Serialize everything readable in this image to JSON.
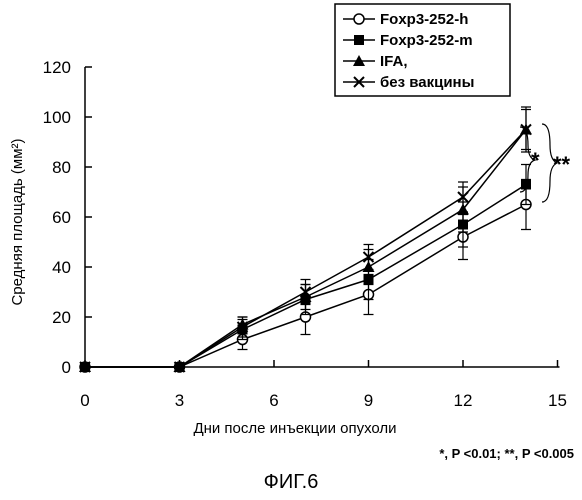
{
  "chart_data": {
    "type": "line",
    "title": "",
    "xlabel": "Дни после инъекции опухоли",
    "ylabel": "Средняя площадь (мм²)",
    "xlim": [
      0,
      15
    ],
    "ylim": [
      0,
      120
    ],
    "xticks": [
      0,
      3,
      6,
      9,
      12,
      15
    ],
    "yticks": [
      0,
      20,
      40,
      60,
      80,
      100,
      120
    ],
    "grid": false,
    "legend_position": "top-right",
    "series": [
      {
        "name": "Foxp3-252-h",
        "legend_label": "-○-:Foxp3-252-h",
        "marker": "open-circle",
        "x": [
          0,
          3,
          5,
          7,
          9,
          12,
          14
        ],
        "y": [
          0,
          0,
          11,
          20,
          29,
          52,
          65
        ],
        "err": [
          0,
          0,
          4,
          7,
          8,
          9,
          10
        ]
      },
      {
        "name": "Foxp3-252-m",
        "legend_label": "-■-:Foxp3-252-m",
        "marker": "filled-square",
        "x": [
          0,
          3,
          5,
          7,
          9,
          12,
          14
        ],
        "y": [
          0,
          0,
          15,
          27,
          35,
          57,
          73
        ],
        "err": [
          0,
          0,
          4,
          6,
          8,
          9,
          8
        ]
      },
      {
        "name": "IFA,",
        "legend_label": "-▲-:IFA,",
        "marker": "filled-triangle",
        "x": [
          0,
          3,
          5,
          7,
          9,
          12,
          14
        ],
        "y": [
          0,
          0,
          17,
          28,
          40,
          63,
          95
        ],
        "err": [
          0,
          0,
          3,
          5,
          7,
          9,
          8
        ]
      },
      {
        "name": "без вакцины",
        "legend_label": "-×-:без вакцины",
        "marker": "x-cross",
        "x": [
          0,
          3,
          5,
          7,
          9,
          12,
          14
        ],
        "y": [
          0,
          0,
          16,
          30,
          44,
          68,
          95
        ],
        "err": [
          0,
          0,
          4,
          5,
          5,
          6,
          9
        ]
      }
    ],
    "annotations": {
      "sig_single": "*",
      "sig_double": "**",
      "footnote": "*, P <0.01; **, P <0.005"
    }
  },
  "caption": "ФИГ.6"
}
